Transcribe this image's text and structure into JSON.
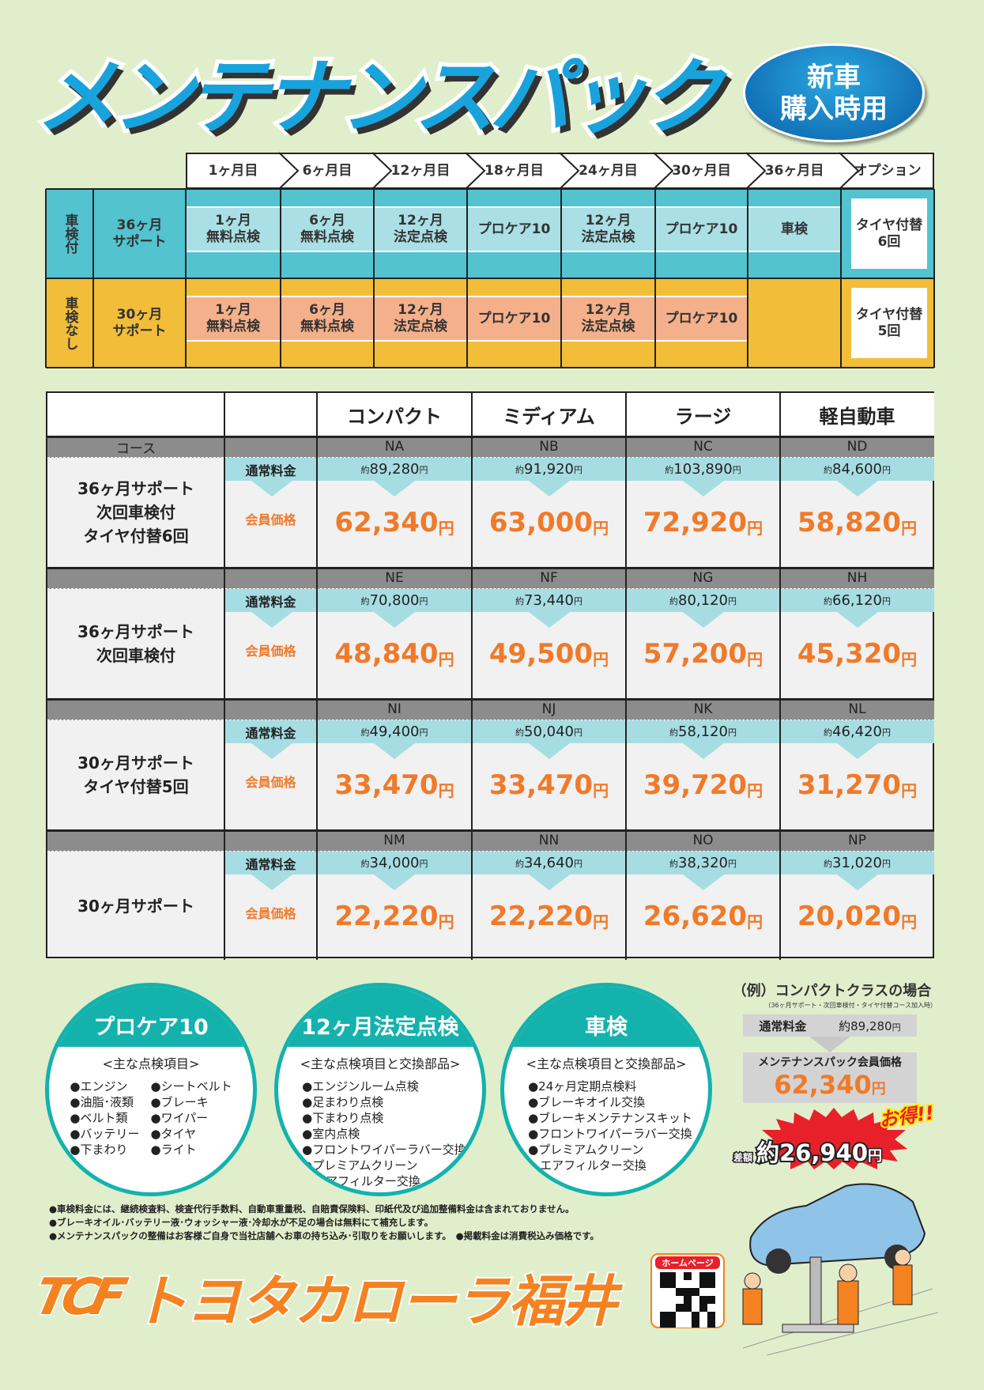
{
  "header": {
    "title": "メンテナンスパック",
    "badge_line1": "新車",
    "badge_line2": "購入時用"
  },
  "schedule": {
    "columns": [
      "1ヶ月目",
      "6ヶ月目",
      "12ヶ月目",
      "18ヶ月目",
      "24ヶ月目",
      "30ヶ月目",
      "36ヶ月目",
      "オプション"
    ],
    "rows": [
      {
        "type": "車検付",
        "plan": "36ヶ月\nサポート",
        "color": "#52c3cf",
        "band": "#a9dfe5",
        "cells": [
          "1ヶ月\n無料点検",
          "6ヶ月\n無料点検",
          "12ヶ月\n法定点検",
          "プロケア10",
          "12ヶ月\n法定点検",
          "プロケア10",
          "車検"
        ],
        "option": "タイヤ付替\n6回"
      },
      {
        "type": "車検なし",
        "plan": "30ヶ月\nサポート",
        "color": "#f2bd38",
        "band": "#f4b08a",
        "cells": [
          "1ヶ月\n無料点検",
          "6ヶ月\n無料点検",
          "12ヶ月\n法定点検",
          "プロケア10",
          "12ヶ月\n法定点検",
          "プロケア10",
          ""
        ],
        "option": "タイヤ付替\n5回"
      }
    ]
  },
  "prices": {
    "classes": [
      "コンパクト",
      "ミディアム",
      "ラージ",
      "軽自動車"
    ],
    "course_label": "コース",
    "regular_label": "通常料金",
    "member_label": "会員価格",
    "approx": "約",
    "yen": "円",
    "groups": [
      {
        "course": "36ヶ月サポート\n次回車検付\nタイヤ付替6回",
        "codes": [
          "NA",
          "NB",
          "NC",
          "ND"
        ],
        "regular": [
          "89,280",
          "91,920",
          "103,890",
          "84,600"
        ],
        "member": [
          "62,340",
          "63,000",
          "72,920",
          "58,820"
        ]
      },
      {
        "course": "36ヶ月サポート\n次回車検付",
        "codes": [
          "NE",
          "NF",
          "NG",
          "NH"
        ],
        "regular": [
          "70,800",
          "73,440",
          "80,120",
          "66,120"
        ],
        "member": [
          "48,840",
          "49,500",
          "57,200",
          "45,320"
        ]
      },
      {
        "course": "30ヶ月サポート\nタイヤ付替5回",
        "codes": [
          "NI",
          "NJ",
          "NK",
          "NL"
        ],
        "regular": [
          "49,400",
          "50,040",
          "58,120",
          "46,420"
        ],
        "member": [
          "33,470",
          "33,470",
          "39,720",
          "31,270"
        ]
      },
      {
        "course": "30ヶ月サポート",
        "codes": [
          "NM",
          "NN",
          "NO",
          "NP"
        ],
        "regular": [
          "34,000",
          "34,640",
          "38,320",
          "31,020"
        ],
        "member": [
          "22,220",
          "22,220",
          "26,620",
          "20,020"
        ]
      }
    ]
  },
  "services": [
    {
      "title": "プロケア10",
      "subtitle": "<主な点検項目>",
      "col1": [
        "●エンジン",
        "●油脂･液類",
        "●ベルト類",
        "●バッテリー",
        "●下まわり"
      ],
      "col2": [
        "●シートベルト",
        "●ブレーキ",
        "●ワイパー",
        "●タイヤ",
        "●ライト"
      ]
    },
    {
      "title": "12ヶ月法定点検",
      "subtitle": "<主な点検項目と交換部品>",
      "items": [
        "●エンジンルーム点検",
        "●足まわり点検",
        "●下まわり点検",
        "●室内点検",
        "●フロントワイパーラバー交換",
        "●プレミアムクリーン",
        "　エアフィルター交換"
      ]
    },
    {
      "title": "車検",
      "subtitle": "<主な点検項目と交換部品>",
      "items": [
        "●24ヶ月定期点検料",
        "●ブレーキオイル交換",
        "●ブレーキメンテナンスキット",
        "●フロントワイパーラバー交換",
        "●プレミアムクリーン",
        "　エアフィルター交換"
      ]
    }
  ],
  "example": {
    "title": "（例）コンパクトクラスの場合",
    "note": "（36ヶ月サポート・次回車検付・タイヤ付替コース加入時）",
    "regular_label": "通常料金",
    "regular_price": "約89,280",
    "yen": "円",
    "member_label": "メンテナンスパック会員価格",
    "member_price": "62,340",
    "diff_label": "差額",
    "diff_price": "約26,940",
    "otoku": "お得!!"
  },
  "notes": [
    "●車検料金には、継続検査料、検査代行手数料、自動車重量税、自賠責保険料、印紙代及び追加整備料金は含まれておりません。",
    "●ブレーキオイル･バッテリー液･ウォッシャー液･冷却水が不足の場合は無料にて補充します。",
    "●メンテナンスパックの整備はお客様ご自身で当社店舗へお車の持ち込み･引取りをお願いします。　●掲載料金は消費税込み価格です。"
  ],
  "footer": {
    "logo_mark": "TCF",
    "company": "トヨタカローラ福井",
    "homepage_label": "ホームページ"
  },
  "colors": {
    "background": "#e1eecc",
    "cyan": "#52c3cf",
    "yellow": "#f2bd38",
    "orange": "#f07a2a",
    "teal": "#14b2ad",
    "title_blue": "#19a3dc"
  }
}
